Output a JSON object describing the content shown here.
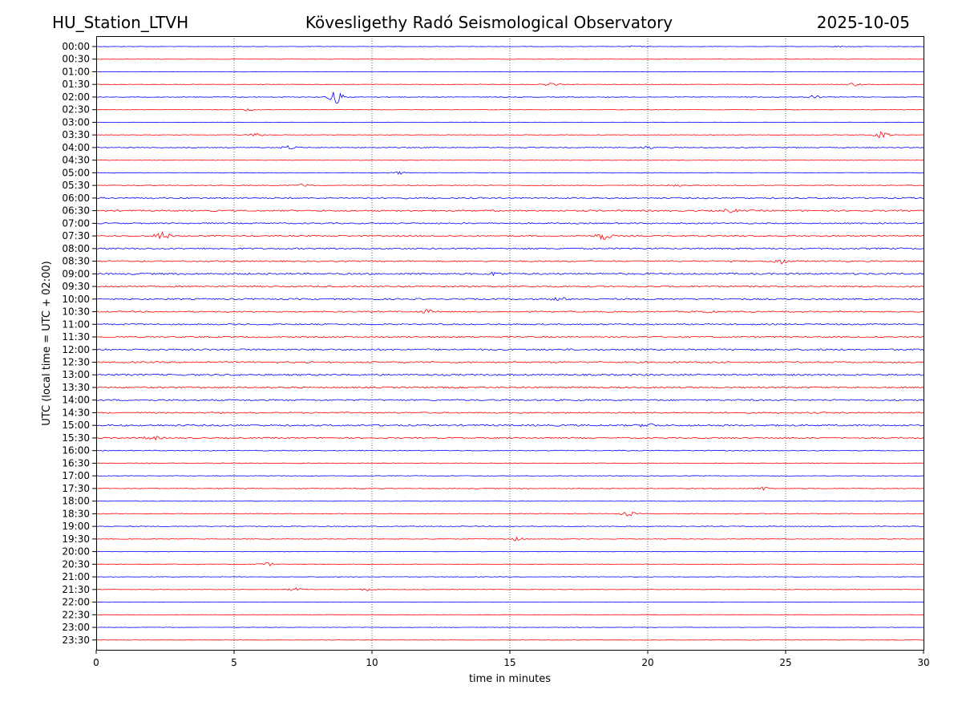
{
  "header": {
    "station": "HU_Station_LTVH",
    "observatory": "Kövesligethy Radó Seismological Observatory",
    "date": "2025-10-05"
  },
  "chart_data": {
    "type": "line",
    "title": "Kövesligethy Radó Seismological Observatory",
    "xlabel": "time in minutes",
    "ylabel": "UTC (local time = UTC + 02:00)",
    "xlim": [
      0,
      30
    ],
    "x_ticks": [
      0,
      5,
      10,
      15,
      20,
      25,
      30
    ],
    "x_tick_labels": [
      "0",
      "5",
      "10",
      "15",
      "20",
      "25",
      "30"
    ],
    "grid": "vertical dotted at each x tick",
    "colors": [
      "#0000ff",
      "#ff0000"
    ],
    "row_labels": [
      "00:00",
      "00:30",
      "01:00",
      "01:30",
      "02:00",
      "02:30",
      "03:00",
      "03:30",
      "04:00",
      "04:30",
      "05:00",
      "05:30",
      "06:00",
      "06:30",
      "07:00",
      "07:30",
      "08:00",
      "08:30",
      "09:00",
      "09:30",
      "10:00",
      "10:30",
      "11:00",
      "11:30",
      "12:00",
      "12:30",
      "13:00",
      "13:30",
      "14:00",
      "14:30",
      "15:00",
      "15:30",
      "16:00",
      "16:30",
      "17:00",
      "17:30",
      "18:00",
      "18:30",
      "19:00",
      "19:30",
      "20:00",
      "20:30",
      "21:00",
      "21:30",
      "22:00",
      "22:30",
      "23:00",
      "23:30"
    ],
    "noise_levels": [
      0.25,
      0.25,
      0.2,
      0.3,
      0.4,
      0.3,
      0.2,
      0.3,
      0.45,
      0.3,
      0.35,
      0.45,
      0.9,
      0.9,
      0.8,
      0.8,
      0.9,
      0.8,
      1.0,
      0.9,
      0.9,
      0.8,
      0.8,
      0.8,
      1.0,
      0.9,
      1.0,
      0.9,
      0.9,
      0.8,
      1.0,
      0.8,
      0.5,
      0.45,
      0.35,
      0.4,
      0.35,
      0.4,
      0.4,
      0.35,
      0.2,
      0.35,
      0.3,
      0.3,
      0.2,
      0.2,
      0.25,
      0.25
    ],
    "events": [
      {
        "row": 0,
        "minute": 19.5,
        "amplitude": 1.0
      },
      {
        "row": 0,
        "minute": 27.0,
        "amplitude": 0.8
      },
      {
        "row": 3,
        "minute": 16.5,
        "amplitude": 2.0
      },
      {
        "row": 3,
        "minute": 27.5,
        "amplitude": 2.0
      },
      {
        "row": 4,
        "minute": 8.7,
        "amplitude": 8.0
      },
      {
        "row": 4,
        "minute": 26.0,
        "amplitude": 2.0
      },
      {
        "row": 5,
        "minute": 5.5,
        "amplitude": 1.5
      },
      {
        "row": 7,
        "minute": 5.8,
        "amplitude": 2.0
      },
      {
        "row": 7,
        "minute": 28.5,
        "amplitude": 4.0
      },
      {
        "row": 8,
        "minute": 7.0,
        "amplitude": 2.5
      },
      {
        "row": 8,
        "minute": 20.0,
        "amplitude": 1.5
      },
      {
        "row": 10,
        "minute": 11.0,
        "amplitude": 1.5
      },
      {
        "row": 11,
        "minute": 7.5,
        "amplitude": 2.0
      },
      {
        "row": 11,
        "minute": 21.0,
        "amplitude": 1.5
      },
      {
        "row": 13,
        "minute": 23.0,
        "amplitude": 2.0
      },
      {
        "row": 15,
        "minute": 2.4,
        "amplitude": 5.0
      },
      {
        "row": 15,
        "minute": 18.4,
        "amplitude": 5.0
      },
      {
        "row": 17,
        "minute": 24.8,
        "amplitude": 3.0
      },
      {
        "row": 18,
        "minute": 14.5,
        "amplitude": 2.0
      },
      {
        "row": 20,
        "minute": 16.8,
        "amplitude": 2.0
      },
      {
        "row": 21,
        "minute": 12.0,
        "amplitude": 2.0
      },
      {
        "row": 21,
        "minute": 22.2,
        "amplitude": 1.5
      },
      {
        "row": 30,
        "minute": 20.0,
        "amplitude": 2.5
      },
      {
        "row": 31,
        "minute": 2.0,
        "amplitude": 2.5
      },
      {
        "row": 35,
        "minute": 24.2,
        "amplitude": 2.0
      },
      {
        "row": 37,
        "minute": 19.3,
        "amplitude": 2.5
      },
      {
        "row": 39,
        "minute": 15.2,
        "amplitude": 2.0
      },
      {
        "row": 41,
        "minute": 6.2,
        "amplitude": 2.0
      },
      {
        "row": 43,
        "minute": 7.2,
        "amplitude": 2.0
      },
      {
        "row": 43,
        "minute": 9.8,
        "amplitude": 1.5
      }
    ]
  }
}
